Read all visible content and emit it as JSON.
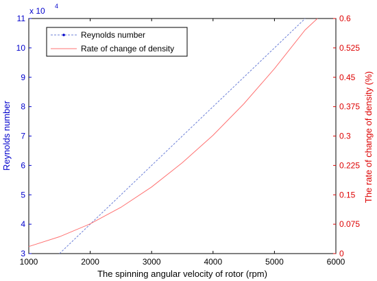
{
  "chart_data": {
    "type": "line",
    "xlabel": "The spinning angular velocity of rotor (rpm)",
    "ylabel_left": "Reynolds number",
    "ylabel_right": "The rate of change of density (%)",
    "left_exponent_label": "x 10",
    "left_exponent_power": "4",
    "xlim": [
      1000,
      6000
    ],
    "ylim_left": [
      3,
      11
    ],
    "ylim_right": [
      0,
      0.6
    ],
    "x_ticks": [
      "1000",
      "2000",
      "3000",
      "4000",
      "5000",
      "6000"
    ],
    "left_ticks": [
      "3",
      "4",
      "5",
      "6",
      "7",
      "8",
      "9",
      "10",
      "11"
    ],
    "right_ticks": [
      "0",
      "0.075",
      "0.15",
      "0.225",
      "0.3",
      "0.375",
      "0.45",
      "0.525",
      "0.6"
    ],
    "legend_position": "top-left",
    "left_axis_color": "#0000cc",
    "right_axis_color": "#dd0000",
    "series": [
      {
        "name": "Reynolds number",
        "axis": "left",
        "color": "#6b7fd7",
        "style": "dashed",
        "x": [
          1500,
          2000,
          2500,
          3000,
          3500,
          4000,
          4500,
          5000,
          5500
        ],
        "y": [
          3.0,
          4.0,
          5.0,
          6.0,
          7.0,
          8.0,
          9.0,
          10.0,
          11.0
        ]
      },
      {
        "name": "Rate of change of density",
        "axis": "right",
        "color": "#ff7070",
        "style": "solid",
        "x": [
          1000,
          1500,
          2000,
          2500,
          3000,
          3500,
          4000,
          4500,
          5000,
          5500,
          5700
        ],
        "y": [
          0.018,
          0.043,
          0.076,
          0.118,
          0.17,
          0.232,
          0.302,
          0.382,
          0.472,
          0.571,
          0.6
        ]
      }
    ]
  }
}
